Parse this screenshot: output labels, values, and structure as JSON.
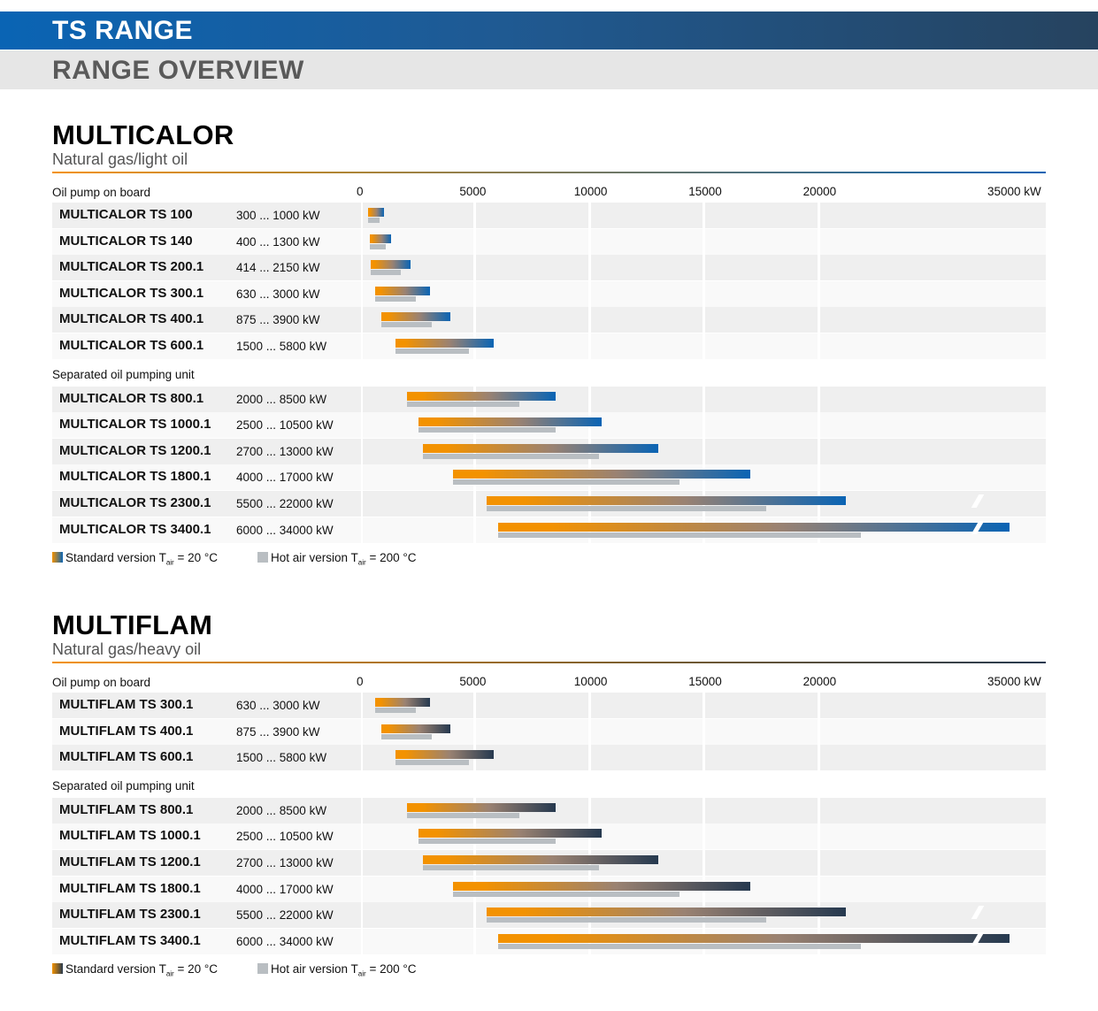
{
  "header": {
    "title": "TS RANGE",
    "subtitle": "RANGE OVERVIEW"
  },
  "colors": {
    "orange": "#f39200",
    "blue": "#0a64b4",
    "navy": "#26394f",
    "hot": "#b9bec2"
  },
  "chart_data": [
    {
      "type": "bar",
      "title": "MULTICALOR",
      "subtitle": "Natural gas/light oil",
      "x_ticks": [
        "0",
        "5000",
        "10000",
        "15000",
        "20000",
        "35000 kW"
      ],
      "x_unit": "kW",
      "axis_break": {
        "after": 20000,
        "before": 35000
      },
      "groups": [
        {
          "label": "Oil pump on board",
          "rows": [
            {
              "name": "MULTICALOR TS 100",
              "range": "300 ... 1000 kW",
              "min": 300,
              "max": 1000,
              "hot_min": 300,
              "hot_max": 800
            },
            {
              "name": "MULTICALOR TS 140",
              "range": "400 ... 1300 kW",
              "min": 400,
              "max": 1300,
              "hot_min": 400,
              "hot_max": 1100
            },
            {
              "name": "MULTICALOR TS 200.1",
              "range": "414 ... 2150 kW",
              "min": 414,
              "max": 2150,
              "hot_min": 414,
              "hot_max": 1750
            },
            {
              "name": "MULTICALOR TS 300.1",
              "range": "630 ... 3000 kW",
              "min": 630,
              "max": 3000,
              "hot_min": 630,
              "hot_max": 2400
            },
            {
              "name": "MULTICALOR TS 400.1",
              "range": "875 ... 3900 kW",
              "min": 875,
              "max": 3900,
              "hot_min": 875,
              "hot_max": 3100
            },
            {
              "name": "MULTICALOR TS 600.1",
              "range": "1500 ... 5800 kW",
              "min": 1500,
              "max": 5800,
              "hot_min": 1500,
              "hot_max": 4700
            }
          ]
        },
        {
          "label": "Separated oil pumping unit",
          "rows": [
            {
              "name": "MULTICALOR TS 800.1",
              "range": "2000 ... 8500 kW",
              "min": 2000,
              "max": 8500,
              "hot_min": 2000,
              "hot_max": 6900
            },
            {
              "name": "MULTICALOR TS 1000.1",
              "range": "2500 ... 10500 kW",
              "min": 2500,
              "max": 10500,
              "hot_min": 2500,
              "hot_max": 8500
            },
            {
              "name": "MULTICALOR TS 1200.1",
              "range": "2700 ... 13000 kW",
              "min": 2700,
              "max": 13000,
              "hot_min": 2700,
              "hot_max": 10400
            },
            {
              "name": "MULTICALOR TS 1800.1",
              "range": "4000 ... 17000 kW",
              "min": 4000,
              "max": 17000,
              "hot_min": 4000,
              "hot_max": 13900
            },
            {
              "name": "MULTICALOR TS 2300.1",
              "range": "5500 ... 22000 kW",
              "min": 5500,
              "max": 22000,
              "hot_min": 5500,
              "hot_max": 17700
            },
            {
              "name": "MULTICALOR TS 3400.1",
              "range": "6000 ... 34000 kW",
              "min": 6000,
              "max": 34000,
              "hot_min": 6000,
              "hot_max": 23100
            }
          ]
        }
      ],
      "legend": [
        {
          "label": "Standard version T",
          "sub": "air",
          "suffix": " = 20 °C"
        },
        {
          "label": "Hot air version T",
          "sub": "air",
          "suffix": " = 200 °C"
        }
      ]
    },
    {
      "type": "bar",
      "title": "MULTIFLAM",
      "subtitle": "Natural gas/heavy oil",
      "x_ticks": [
        "0",
        "5000",
        "10000",
        "15000",
        "20000",
        "35000 kW"
      ],
      "x_unit": "kW",
      "axis_break": {
        "after": 20000,
        "before": 35000
      },
      "groups": [
        {
          "label": "Oil pump on board",
          "rows": [
            {
              "name": "MULTIFLAM TS 300.1",
              "range": "630 ... 3000 kW",
              "min": 630,
              "max": 3000,
              "hot_min": 630,
              "hot_max": 2400
            },
            {
              "name": "MULTIFLAM TS 400.1",
              "range": "875 ... 3900 kW",
              "min": 875,
              "max": 3900,
              "hot_min": 875,
              "hot_max": 3100
            },
            {
              "name": "MULTIFLAM TS 600.1",
              "range": "1500 ... 5800 kW",
              "min": 1500,
              "max": 5800,
              "hot_min": 1500,
              "hot_max": 4700
            }
          ]
        },
        {
          "label": "Separated oil pumping unit",
          "rows": [
            {
              "name": "MULTIFLAM TS 800.1",
              "range": "2000 ... 8500 kW",
              "min": 2000,
              "max": 8500,
              "hot_min": 2000,
              "hot_max": 6900
            },
            {
              "name": "MULTIFLAM TS 1000.1",
              "range": "2500 ... 10500 kW",
              "min": 2500,
              "max": 10500,
              "hot_min": 2500,
              "hot_max": 8500
            },
            {
              "name": "MULTIFLAM TS 1200.1",
              "range": "2700 ... 13000 kW",
              "min": 2700,
              "max": 13000,
              "hot_min": 2700,
              "hot_max": 10400
            },
            {
              "name": "MULTIFLAM TS 1800.1",
              "range": "4000 ... 17000 kW",
              "min": 4000,
              "max": 17000,
              "hot_min": 4000,
              "hot_max": 13900
            },
            {
              "name": "MULTIFLAM TS 2300.1",
              "range": "5500 ... 22000 kW",
              "min": 5500,
              "max": 22000,
              "hot_min": 5500,
              "hot_max": 17700
            },
            {
              "name": "MULTIFLAM TS 3400.1",
              "range": "6000 ... 34000 kW",
              "min": 6000,
              "max": 34000,
              "hot_min": 6000,
              "hot_max": 23100
            }
          ]
        }
      ],
      "legend": [
        {
          "label": "Standard version T",
          "sub": "air",
          "suffix": " = 20 °C"
        },
        {
          "label": "Hot air version T",
          "sub": "air",
          "suffix": " = 200 °C"
        }
      ]
    }
  ]
}
